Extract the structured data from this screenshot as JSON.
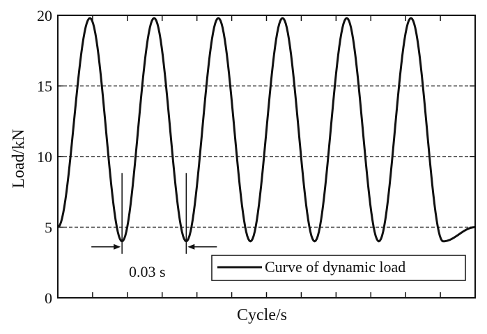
{
  "chart_data": {
    "type": "line",
    "xlabel": "Cycle/s",
    "ylabel": "Load/kN",
    "ylim": [
      0,
      20
    ],
    "y_ticks": [
      "0",
      "5",
      "10",
      "15",
      "20"
    ],
    "x_tick_count": 12,
    "grid": "dashed horizontal at 5, 10, 15",
    "legend": {
      "position": "bottom-right",
      "entries": [
        "Curve of dynamic load"
      ]
    },
    "annotation": {
      "label": "0.03 s",
      "meaning": "period between successive minima"
    },
    "series": [
      {
        "name": "Curve of dynamic load",
        "x": [
          0,
          0.015,
          0.03,
          0.045,
          0.06,
          0.075,
          0.09,
          0.105,
          0.12,
          0.135,
          0.15,
          0.165,
          0.18,
          0.195
        ],
        "y": [
          5,
          19.8,
          4,
          19.8,
          4,
          19.8,
          4,
          19.8,
          4,
          19.8,
          4,
          19.8,
          4,
          5
        ],
        "line_color": "#111111"
      }
    ]
  }
}
